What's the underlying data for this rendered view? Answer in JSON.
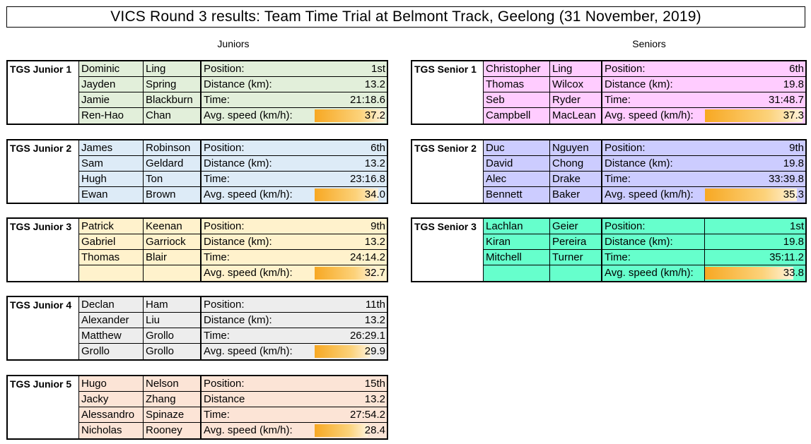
{
  "title": "VICS Round 3 results: Team Time Trial at Belmont Track, Geelong (31 November, 2019)",
  "sections": {
    "juniors": "Juniors",
    "seniors": "Seniors"
  },
  "labels": {
    "position": "Position:",
    "distance": "Distance (km):",
    "distance_alt": "Distance",
    "time": "Time:",
    "avg_speed": "Avg. speed (km/h):"
  },
  "colors": {
    "junior1": "#e2efda",
    "junior2": "#ddebf7",
    "junior3": "#fff2cc",
    "junior4": "#ededed",
    "junior5": "#fce4d6",
    "senior1": "#ffccff",
    "senior2": "#ccccff",
    "senior3": "#66ffcc",
    "bar": "#f7a823"
  },
  "juniors": [
    {
      "team": "TGS Junior 1",
      "riders": [
        [
          "Dominic",
          "Ling"
        ],
        [
          "Jayden",
          "Spring"
        ],
        [
          "Jamie",
          "Blackburn"
        ],
        [
          "Ren-Hao",
          "Chan"
        ]
      ],
      "position": "1st",
      "distance": "13.2",
      "time": "21:18.6",
      "avg_speed": "37.2",
      "speed_value": 37.2
    },
    {
      "team": "TGS Junior 2",
      "riders": [
        [
          "James",
          "Robinson"
        ],
        [
          "Sam",
          "Geldard"
        ],
        [
          "Hugh",
          "Ton"
        ],
        [
          "Ewan",
          "Brown"
        ]
      ],
      "position": "6th",
      "distance": "13.2",
      "time": "23:16.8",
      "avg_speed": "34.0",
      "speed_value": 34.0
    },
    {
      "team": "TGS Junior 3",
      "riders": [
        [
          "Patrick",
          "Keenan"
        ],
        [
          "Gabriel",
          "Garriock"
        ],
        [
          "Thomas",
          "Blair"
        ],
        [
          "",
          ""
        ]
      ],
      "position": "9th",
      "distance": "13.2",
      "time": "24:14.2",
      "avg_speed": "32.7",
      "speed_value": 32.7
    },
    {
      "team": "TGS Junior 4",
      "riders": [
        [
          "Declan",
          "Ham"
        ],
        [
          "Alexander",
          "Liu"
        ],
        [
          "Matthew",
          "Grollo"
        ],
        [
          "Grollo",
          "Grollo"
        ]
      ],
      "position": "11th",
      "distance": "13.2",
      "time": "26:29.1",
      "avg_speed": "29.9",
      "speed_value": 29.9
    },
    {
      "team": "TGS Junior 5",
      "riders": [
        [
          "Hugo",
          "Nelson"
        ],
        [
          "Jacky",
          "Zhang"
        ],
        [
          "Alessandro",
          "Spinaze"
        ],
        [
          "Nicholas",
          "Rooney"
        ]
      ],
      "position": "15th",
      "distance": "13.2",
      "time": "27:54.2",
      "avg_speed": "28.4",
      "speed_value": 28.4
    }
  ],
  "seniors": [
    {
      "team": "TGS Senior 1",
      "riders": [
        [
          "Christopher",
          "Ling"
        ],
        [
          "Thomas",
          "Wilcox"
        ],
        [
          "Seb",
          "Ryder"
        ],
        [
          "Campbell",
          "MacLean"
        ]
      ],
      "position": "6th",
      "distance": "19.8",
      "time": "31:48.7",
      "avg_speed": "37.3",
      "speed_value": 37.3
    },
    {
      "team": "TGS Senior 2",
      "riders": [
        [
          "Duc",
          "Nguyen"
        ],
        [
          "David",
          "Chong"
        ],
        [
          "Alec",
          "Drake"
        ],
        [
          "Bennett",
          "Baker"
        ]
      ],
      "position": "9th",
      "distance": "19.8",
      "time": "33:39.8",
      "avg_speed": "35.3",
      "speed_value": 35.3
    },
    {
      "team": "TGS Senior 3",
      "riders": [
        [
          "Lachlan",
          "Geier"
        ],
        [
          "Kiran",
          "Pereira"
        ],
        [
          "Mitchell",
          "Turner"
        ],
        [
          "",
          ""
        ]
      ],
      "position": "1st",
      "distance": "19.8",
      "time": "35:11.2",
      "avg_speed": "33.8",
      "speed_value": 33.8
    }
  ]
}
